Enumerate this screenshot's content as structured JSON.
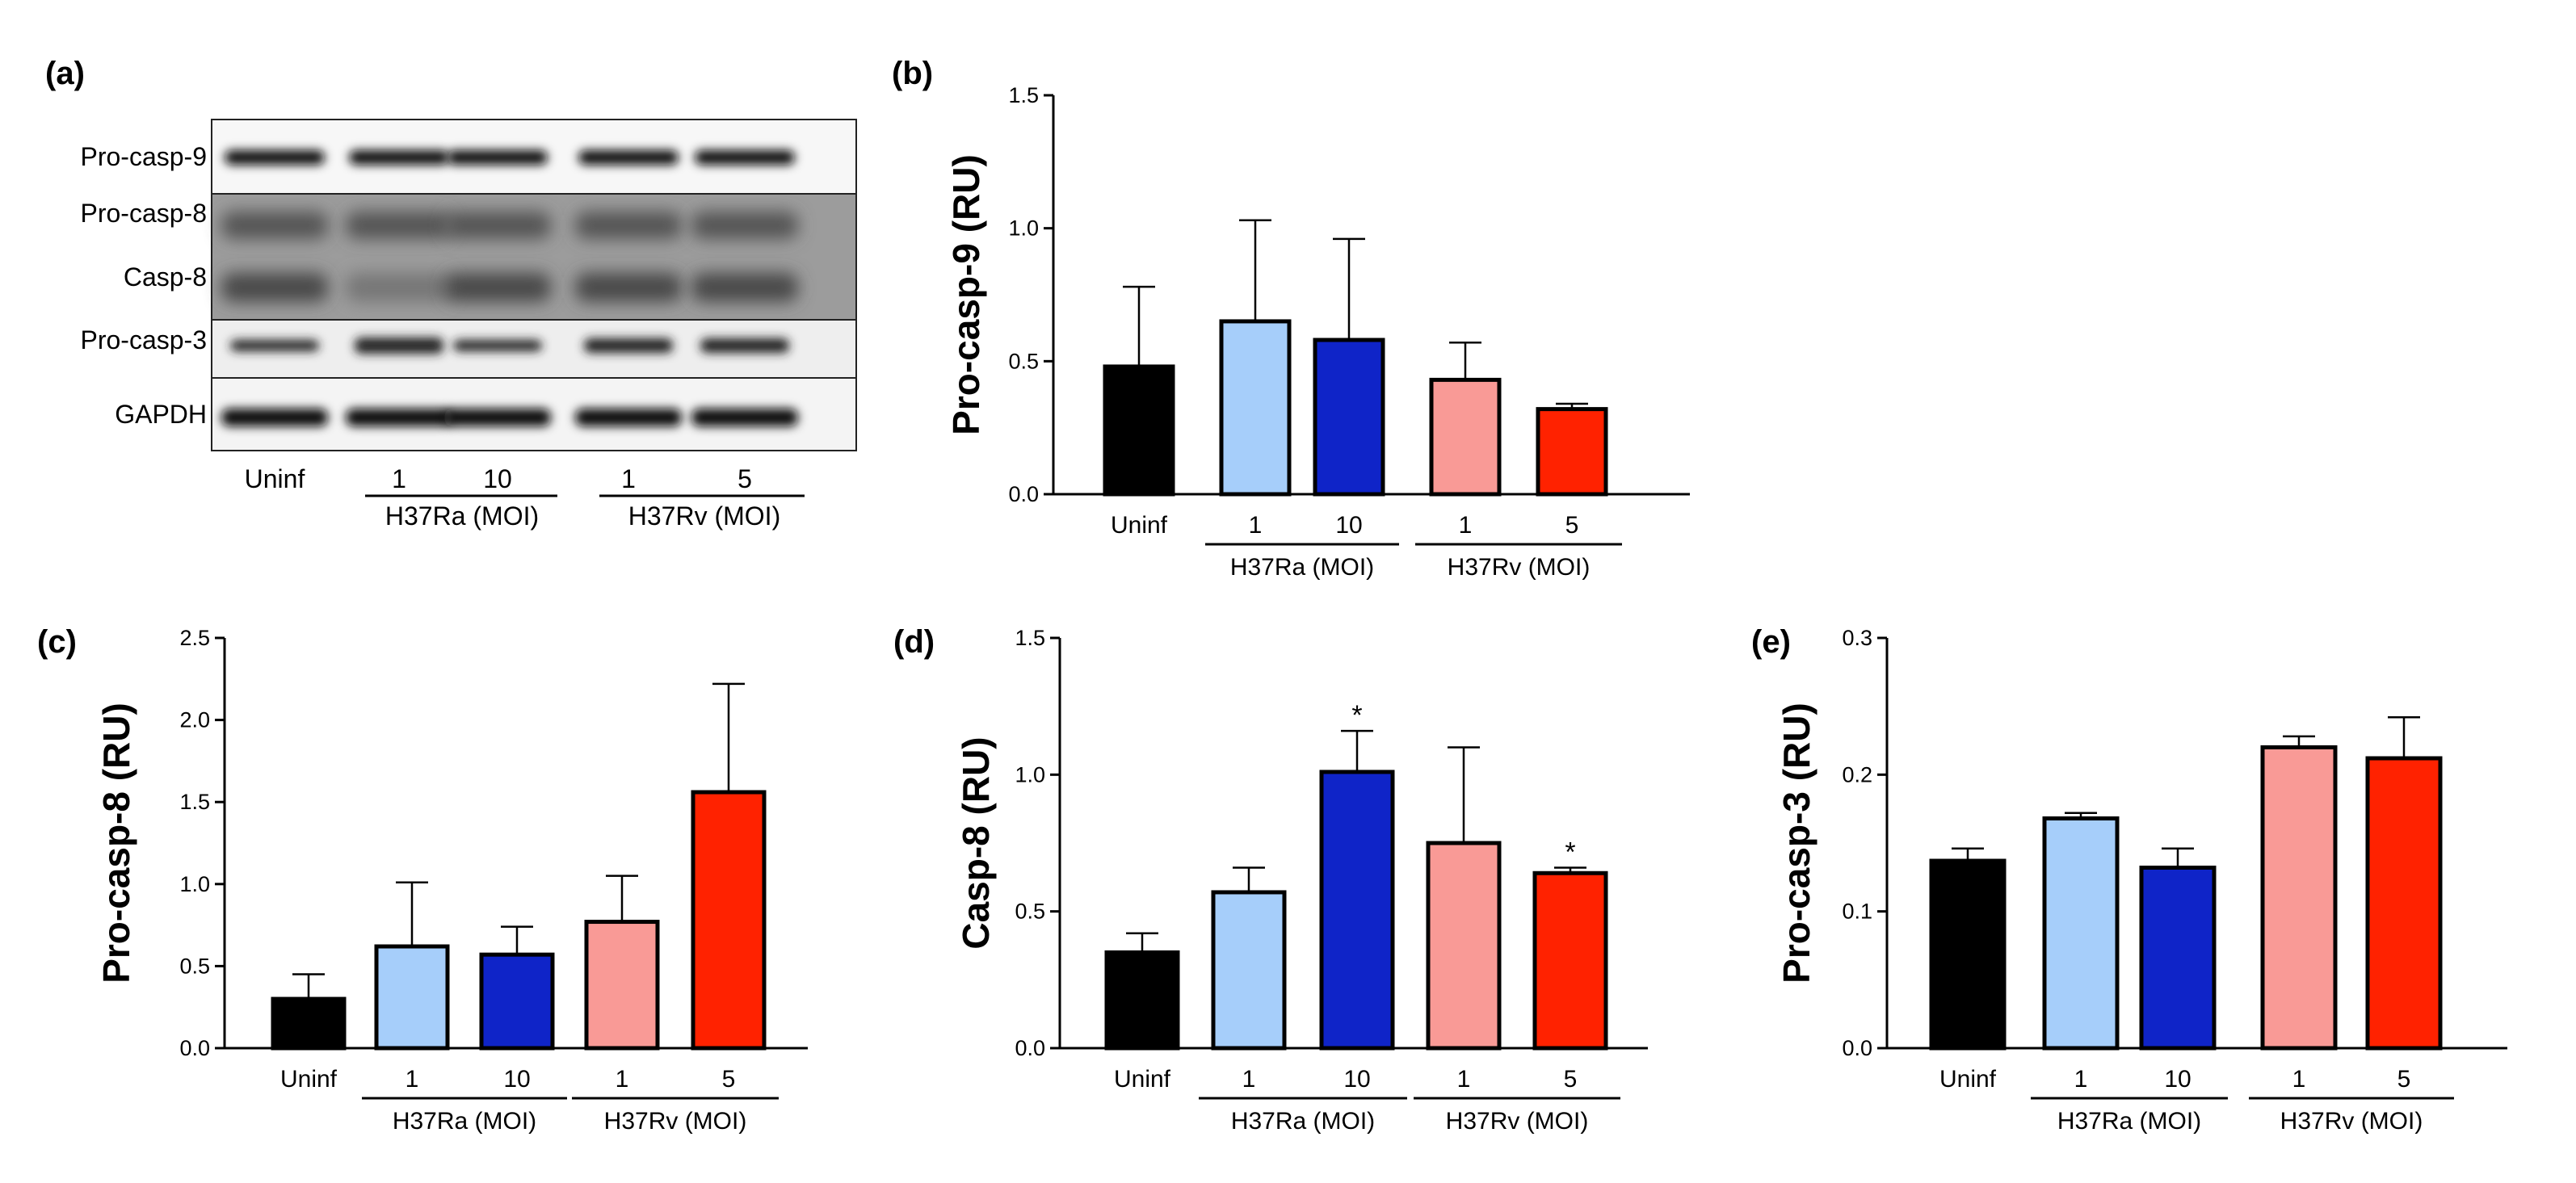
{
  "colors": {
    "uninf": "#000000",
    "h37ra_1": "#a6cefa",
    "h37ra_10": "#0f24c8",
    "h37rv_1": "#f99a96",
    "h37rv_5": "#ff2200"
  },
  "categories": [
    "Uninf",
    "1",
    "10",
    "1",
    "5"
  ],
  "groups": [
    {
      "label": "H37Ra (MOI)",
      "from": 1,
      "to": 2
    },
    {
      "label": "H37Rv (MOI)",
      "from": 3,
      "to": 4
    }
  ],
  "panel_a": {
    "label": "(a)",
    "rows": [
      "Pro-casp-9",
      "Pro-casp-8",
      "Casp-8",
      "Pro-casp-3",
      "GAPDH"
    ],
    "lanes": [
      "Uninf",
      "1",
      "10",
      "1",
      "5"
    ],
    "groups": [
      "H37Ra (MOI)",
      "H37Rv (MOI)"
    ]
  },
  "chart_data": [
    {
      "panel": "(b)",
      "type": "bar",
      "ylabel": "Pro-casp-9 (RU)",
      "ylim": [
        0,
        1.5
      ],
      "yticks": [
        "0.0",
        "0.5",
        "1.0",
        "1.5"
      ],
      "categories": [
        "Uninf",
        "1",
        "10",
        "1",
        "5"
      ],
      "values": [
        0.48,
        0.65,
        0.58,
        0.43,
        0.32
      ],
      "errors": [
        0.3,
        0.38,
        0.38,
        0.14,
        0.02
      ],
      "significance": [
        "",
        "",
        "",
        "",
        ""
      ]
    },
    {
      "panel": "(c)",
      "type": "bar",
      "ylabel": "Pro-casp-8 (RU)",
      "ylim": [
        0,
        2.5
      ],
      "yticks": [
        "0.0",
        "0.5",
        "1.0",
        "1.5",
        "2.0",
        "2.5"
      ],
      "categories": [
        "Uninf",
        "1",
        "10",
        "1",
        "5"
      ],
      "values": [
        0.3,
        0.62,
        0.57,
        0.77,
        1.56
      ],
      "errors": [
        0.15,
        0.39,
        0.17,
        0.28,
        0.66
      ],
      "significance": [
        "",
        "",
        "",
        "",
        ""
      ]
    },
    {
      "panel": "(d)",
      "type": "bar",
      "ylabel": "Casp-8 (RU)",
      "ylim": [
        0,
        1.5
      ],
      "yticks": [
        "0.0",
        "0.5",
        "1.0",
        "1.5"
      ],
      "categories": [
        "Uninf",
        "1",
        "10",
        "1",
        "5"
      ],
      "values": [
        0.35,
        0.57,
        1.01,
        0.75,
        0.64
      ],
      "errors": [
        0.07,
        0.09,
        0.15,
        0.35,
        0.02
      ],
      "significance": [
        "",
        "",
        "*",
        "",
        "*"
      ]
    },
    {
      "panel": "(e)",
      "type": "bar",
      "ylabel": "Pro-casp-3 (RU)",
      "ylim": [
        0,
        0.3
      ],
      "yticks": [
        "0.0",
        "0.1",
        "0.2",
        "0.3"
      ],
      "categories": [
        "Uninf",
        "1",
        "10",
        "1",
        "5"
      ],
      "values": [
        0.137,
        0.168,
        0.132,
        0.22,
        0.212
      ],
      "errors": [
        0.009,
        0.004,
        0.014,
        0.008,
        0.03
      ],
      "significance": [
        "",
        "",
        "",
        "",
        ""
      ]
    }
  ]
}
